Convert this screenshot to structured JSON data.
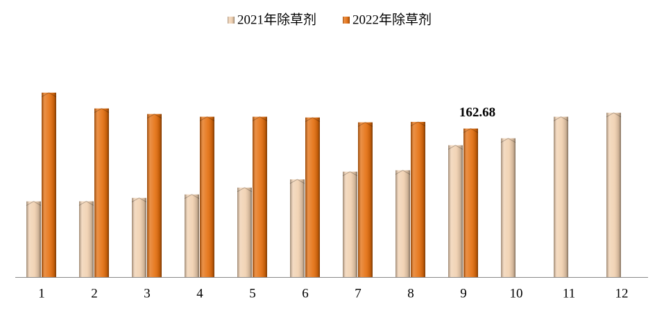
{
  "chart_data": {
    "type": "bar",
    "categories": [
      "1",
      "2",
      "3",
      "4",
      "5",
      "6",
      "7",
      "8",
      "9",
      "10",
      "11",
      "12"
    ],
    "series": [
      {
        "name": "2021年除草剂",
        "color": "#f0cfae",
        "values": [
          82.9,
          83,
          86.7,
          90.5,
          98,
          107,
          115.5,
          117,
          144.4,
          152,
          175.6,
          180
        ]
      },
      {
        "name": "2022年除草剂",
        "color": "#e46c0a",
        "values": [
          202,
          184.7,
          178.6,
          175.6,
          175.6,
          174.8,
          169.5,
          170,
          162.68,
          null,
          null,
          null
        ]
      }
    ],
    "ylim": [
      0,
      258
    ],
    "legend": "top"
  }
}
